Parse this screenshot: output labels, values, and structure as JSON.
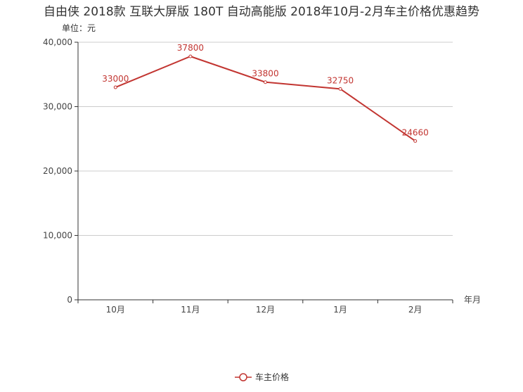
{
  "chart_data": {
    "type": "line",
    "title": "自由侠 2018款 互联大屏版 180T 自动高能版 2018年10月-2月车主价格优惠趋势",
    "ylabel": "单位：元",
    "xlabel": "年月",
    "categories": [
      "10月",
      "11月",
      "12月",
      "1月",
      "2月"
    ],
    "series": [
      {
        "name": "车主价格",
        "values": [
          33000,
          37800,
          33800,
          32750,
          24660
        ],
        "color": "#c23531"
      }
    ],
    "ylim": [
      0,
      40000
    ],
    "yticks": [
      0,
      10000,
      20000,
      30000,
      40000
    ],
    "ytick_labels": [
      "0",
      "10,000",
      "20,000",
      "30,000",
      "40,000"
    ],
    "grid": true,
    "legend": "bottom-center"
  }
}
